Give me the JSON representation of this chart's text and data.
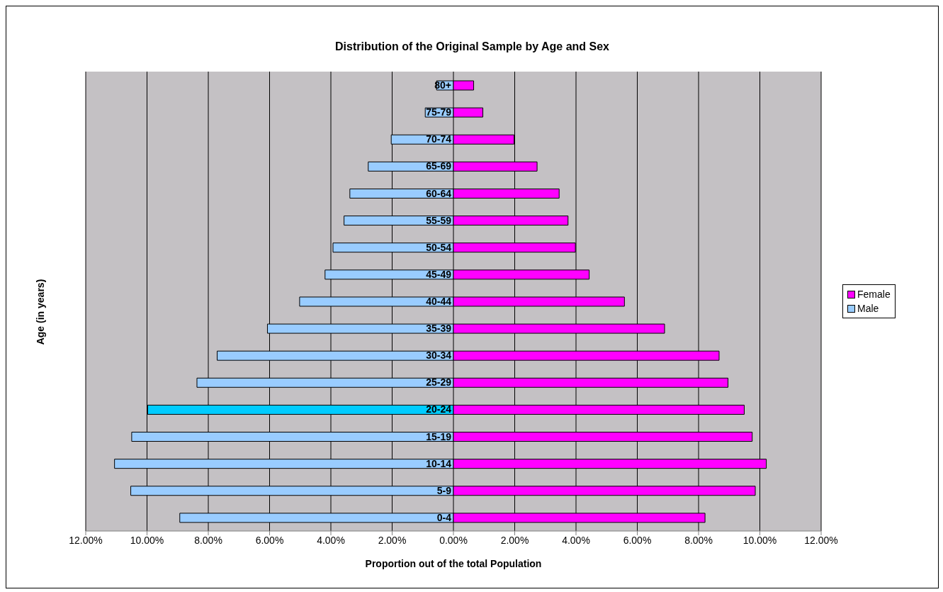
{
  "chart_data": {
    "type": "bar",
    "orientation": "horizontal",
    "stacked": true,
    "title": "Distribution of the Original Sample by Age and Sex",
    "xlabel": "Proportion out of the total Population",
    "ylabel": "Age (in years)",
    "categories": [
      "80+",
      "75-79",
      "70-74",
      "65-69",
      "60-64",
      "55-59",
      "50-54",
      "45-49",
      "40-44",
      "35-39",
      "30-34",
      "25-29",
      "20-24",
      "15-19",
      "10-14",
      "5-9",
      "0-4"
    ],
    "series": [
      {
        "name": "Male",
        "color": "#99ccff",
        "colors": [
          "#99ccff",
          "#99ccff",
          "#99ccff",
          "#99ccff",
          "#99ccff",
          "#99ccff",
          "#99ccff",
          "#99ccff",
          "#99ccff",
          "#99ccff",
          "#99ccff",
          "#99ccff",
          "#00ccff",
          "#99ccff",
          "#99ccff",
          "#99ccff",
          "#99ccff"
        ],
        "values": [
          -0.55,
          -0.92,
          -2.03,
          -2.78,
          -3.38,
          -3.57,
          -3.93,
          -4.19,
          -5.02,
          -6.07,
          -7.71,
          -8.37,
          -9.98,
          -10.5,
          -11.06,
          -10.53,
          -8.93
        ]
      },
      {
        "name": "Female",
        "color": "#ff00ff",
        "values": [
          0.66,
          0.96,
          1.98,
          2.73,
          3.45,
          3.74,
          3.98,
          4.43,
          5.58,
          6.89,
          8.67,
          8.96,
          9.49,
          9.75,
          10.21,
          9.85,
          8.21
        ]
      }
    ],
    "xlim": [
      -12,
      12
    ],
    "xticks": [
      {
        "value": -12,
        "label": "12.00%"
      },
      {
        "value": -10,
        "label": "10.00%"
      },
      {
        "value": -8,
        "label": "8.00%"
      },
      {
        "value": -6,
        "label": "6.00%"
      },
      {
        "value": -4,
        "label": "4.00%"
      },
      {
        "value": -2,
        "label": "2.00%"
      },
      {
        "value": 0,
        "label": "0.00%"
      },
      {
        "value": 2,
        "label": "2.00%"
      },
      {
        "value": 4,
        "label": "4.00%"
      },
      {
        "value": 6,
        "label": "6.00%"
      },
      {
        "value": 8,
        "label": "8.00%"
      },
      {
        "value": 10,
        "label": "10.00%"
      },
      {
        "value": 12,
        "label": "12.00%"
      }
    ],
    "grid": "x",
    "legend": "right"
  }
}
